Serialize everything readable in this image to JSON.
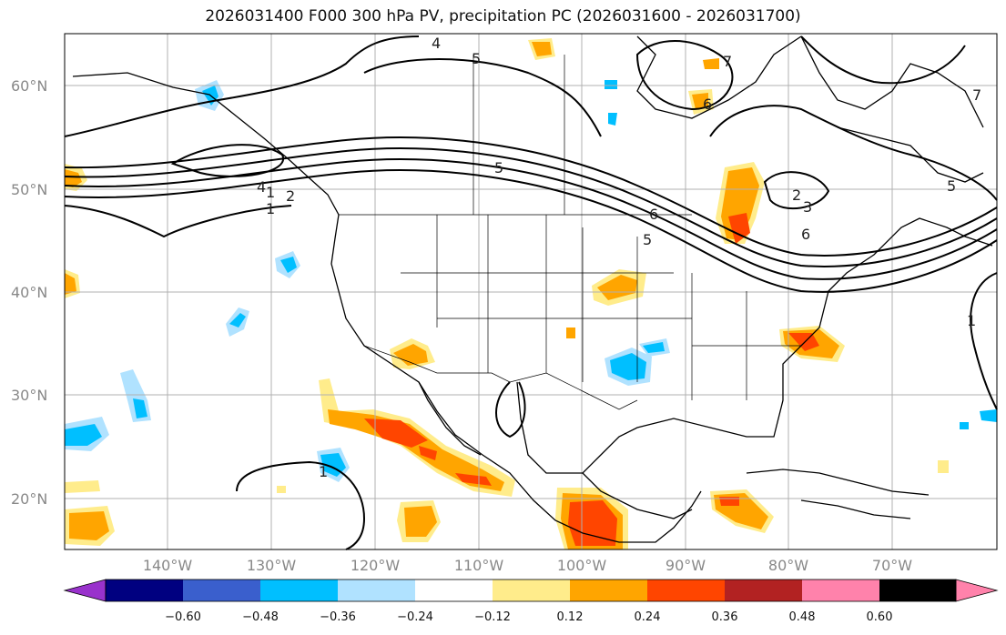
{
  "title": "2026031400 F000 300 hPa PV, precipitation PC (2026031600 - 2026031700)",
  "map": {
    "lat_labels": [
      "60°N",
      "50°N",
      "40°N",
      "30°N",
      "20°N"
    ],
    "lon_labels": [
      "140°W",
      "130°W",
      "120°W",
      "110°W",
      "100°W",
      "90°W",
      "80°W",
      "70°W"
    ],
    "contour_labels": [
      "4",
      "5",
      "1",
      "5",
      "4",
      "2",
      "1",
      "6",
      "5",
      "7",
      "6",
      "2",
      "3",
      "6",
      "5",
      "1",
      "7",
      "1"
    ],
    "extent": {
      "lon": [
        -150,
        -60
      ],
      "lat": [
        15,
        65
      ]
    }
  },
  "colorbar": {
    "ticks": [
      "−0.60",
      "−0.48",
      "−0.36",
      "−0.24",
      "−0.12",
      "0.12",
      "0.24",
      "0.36",
      "0.48",
      "0.60"
    ],
    "colors": [
      "#9932cc",
      "#000080",
      "#3a5fcd",
      "#00bfff",
      "#b0e2ff",
      "#ffffff",
      "#ffec8b",
      "#ffa500",
      "#ff4500",
      "#b22222",
      "#ff82ab"
    ]
  }
}
